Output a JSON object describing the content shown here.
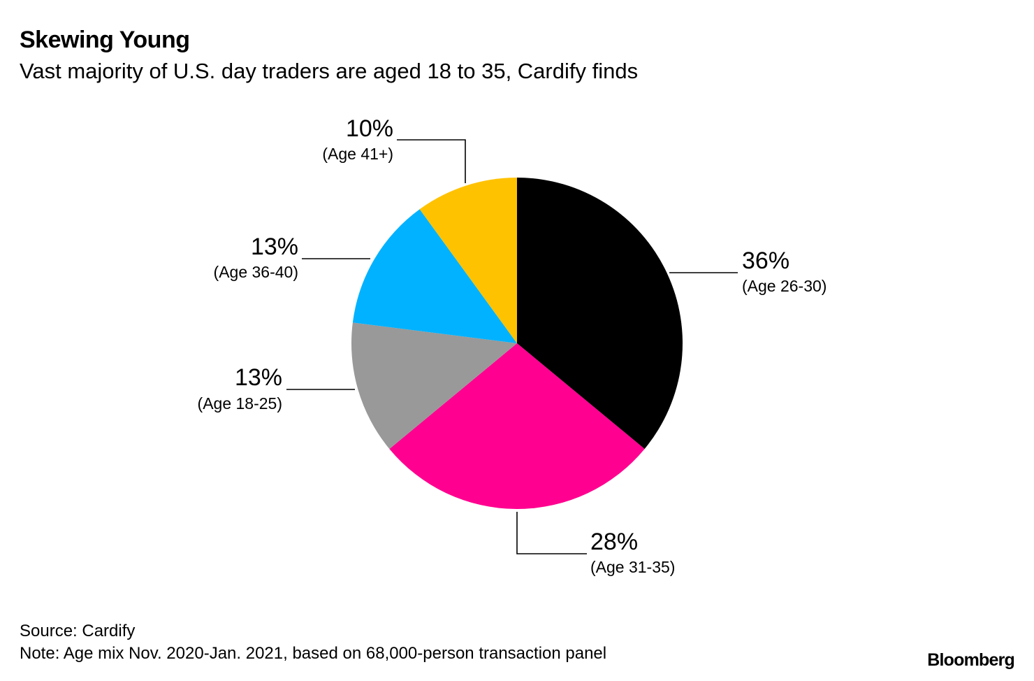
{
  "header": {
    "title": "Skewing Young",
    "subtitle": "Vast majority of U.S. day traders are aged 18 to 35, Cardify finds"
  },
  "chart_data": {
    "type": "pie",
    "title": "Skewing Young",
    "subtitle": "Vast majority of U.S. day traders are aged 18 to 35, Cardify finds",
    "start": "12 o'clock, clockwise",
    "slices": [
      {
        "key": "age-26-30",
        "category": "(Age 26-30)",
        "value": 36,
        "label": "36%",
        "color": "#000000"
      },
      {
        "key": "age-31-35",
        "category": "(Age 31-35)",
        "value": 28,
        "label": "28%",
        "color": "#ff0090"
      },
      {
        "key": "age-18-25",
        "category": "(Age 18-25)",
        "value": 13,
        "label": "13%",
        "color": "#999999"
      },
      {
        "key": "age-36-40",
        "category": "(Age 36-40)",
        "value": 13,
        "label": "13%",
        "color": "#00b2ff"
      },
      {
        "key": "age-41-plus",
        "category": "(Age 41+)",
        "value": 10,
        "label": "10%",
        "color": "#ffc200"
      }
    ]
  },
  "footer": {
    "source": "Source: Cardify",
    "note": "Note: Age mix Nov. 2020-Jan. 2021, based on 68,000-person transaction panel",
    "brand": "Bloomberg"
  }
}
